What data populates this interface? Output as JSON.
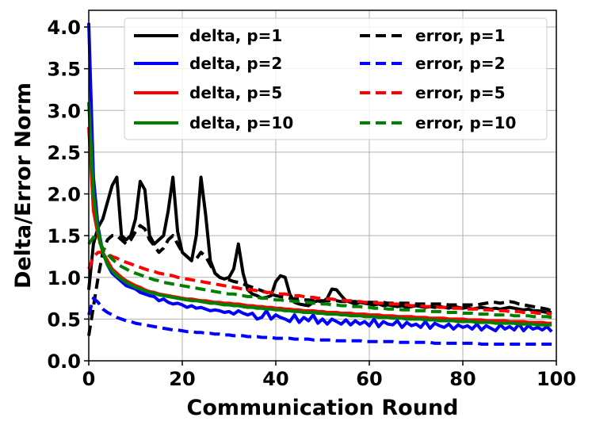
{
  "chart_data": {
    "type": "line",
    "title": "",
    "xlabel": "Communication Round",
    "ylabel": "Delta/Error Norm",
    "xlim": [
      0,
      100
    ],
    "ylim": [
      0,
      4.2
    ],
    "x_ticks": [
      "0",
      "20",
      "40",
      "60",
      "80",
      "100"
    ],
    "y_ticks": [
      "0.0",
      "0.5",
      "1.0",
      "1.5",
      "2.0",
      "2.5",
      "3.0",
      "3.5",
      "4.0"
    ],
    "grid": true,
    "legend_position": "top-right",
    "x": [
      0,
      1,
      2,
      3,
      4,
      5,
      6,
      7,
      8,
      9,
      10,
      11,
      12,
      13,
      14,
      15,
      16,
      17,
      18,
      19,
      20,
      21,
      22,
      23,
      24,
      25,
      26,
      27,
      28,
      29,
      30,
      31,
      32,
      33,
      34,
      35,
      36,
      37,
      38,
      39,
      40,
      41,
      42,
      43,
      44,
      45,
      46,
      47,
      48,
      49,
      50,
      51,
      52,
      53,
      54,
      55,
      56,
      57,
      58,
      59,
      60,
      61,
      62,
      63,
      64,
      65,
      66,
      67,
      68,
      69,
      70,
      71,
      72,
      73,
      74,
      75,
      76,
      77,
      78,
      79,
      80,
      81,
      82,
      83,
      84,
      85,
      86,
      87,
      88,
      89,
      90,
      91,
      92,
      93,
      94,
      95,
      96,
      97,
      98,
      99
    ],
    "series": [
      {
        "name": "delta, p=1",
        "color": "#000000",
        "dash": "solid",
        "values": [
          0.85,
          1.4,
          1.6,
          1.7,
          1.9,
          2.1,
          2.2,
          1.5,
          1.45,
          1.5,
          1.7,
          2.15,
          2.05,
          1.5,
          1.4,
          1.45,
          1.5,
          1.8,
          2.2,
          1.55,
          1.3,
          1.25,
          1.2,
          1.5,
          2.2,
          1.75,
          1.2,
          1.05,
          1.0,
          0.98,
          1.0,
          1.1,
          1.4,
          1.05,
          0.85,
          0.8,
          0.78,
          0.75,
          0.76,
          0.78,
          0.95,
          1.02,
          1.0,
          0.8,
          0.7,
          0.68,
          0.67,
          0.66,
          0.7,
          0.72,
          0.7,
          0.75,
          0.86,
          0.85,
          0.78,
          0.72,
          0.7,
          0.68,
          0.7,
          0.69,
          0.68,
          0.67,
          0.68,
          0.66,
          0.67,
          0.66,
          0.65,
          0.66,
          0.64,
          0.65,
          0.66,
          0.65,
          0.64,
          0.65,
          0.64,
          0.65,
          0.64,
          0.63,
          0.65,
          0.64,
          0.63,
          0.64,
          0.62,
          0.63,
          0.64,
          0.63,
          0.62,
          0.63,
          0.62,
          0.63,
          0.64,
          0.63,
          0.62,
          0.61,
          0.62,
          0.6,
          0.6,
          0.59,
          0.58,
          0.58
        ]
      },
      {
        "name": "error, p=1",
        "color": "#000000",
        "dash": "dashed",
        "values": [
          0.3,
          0.65,
          1.0,
          1.3,
          1.45,
          1.5,
          1.5,
          1.45,
          1.4,
          1.45,
          1.55,
          1.62,
          1.58,
          1.45,
          1.38,
          1.3,
          1.35,
          1.45,
          1.5,
          1.4,
          1.3,
          1.25,
          1.2,
          1.22,
          1.3,
          1.25,
          1.15,
          1.05,
          1.0,
          0.98,
          0.97,
          0.95,
          0.94,
          0.92,
          0.9,
          0.88,
          0.86,
          0.84,
          0.82,
          0.8,
          0.78,
          0.77,
          0.76,
          0.75,
          0.74,
          0.74,
          0.73,
          0.73,
          0.72,
          0.72,
          0.72,
          0.72,
          0.72,
          0.72,
          0.71,
          0.71,
          0.71,
          0.71,
          0.7,
          0.7,
          0.7,
          0.7,
          0.7,
          0.7,
          0.69,
          0.69,
          0.69,
          0.69,
          0.69,
          0.69,
          0.68,
          0.68,
          0.68,
          0.68,
          0.68,
          0.68,
          0.68,
          0.67,
          0.67,
          0.67,
          0.67,
          0.67,
          0.67,
          0.67,
          0.68,
          0.69,
          0.7,
          0.7,
          0.69,
          0.7,
          0.71,
          0.7,
          0.68,
          0.67,
          0.66,
          0.65,
          0.64,
          0.63,
          0.62,
          0.6
        ]
      },
      {
        "name": "delta, p=2",
        "color": "#0000ff",
        "dash": "solid",
        "values": [
          4.05,
          2.2,
          1.6,
          1.3,
          1.15,
          1.05,
          1.0,
          0.95,
          0.9,
          0.88,
          0.86,
          0.82,
          0.8,
          0.78,
          0.77,
          0.72,
          0.74,
          0.7,
          0.68,
          0.69,
          0.67,
          0.64,
          0.66,
          0.63,
          0.64,
          0.62,
          0.6,
          0.61,
          0.6,
          0.58,
          0.59,
          0.56,
          0.6,
          0.57,
          0.55,
          0.57,
          0.5,
          0.52,
          0.6,
          0.5,
          0.55,
          0.52,
          0.5,
          0.47,
          0.55,
          0.46,
          0.52,
          0.48,
          0.55,
          0.45,
          0.5,
          0.44,
          0.5,
          0.47,
          0.44,
          0.49,
          0.43,
          0.48,
          0.44,
          0.47,
          0.42,
          0.5,
          0.41,
          0.47,
          0.44,
          0.43,
          0.48,
          0.4,
          0.46,
          0.42,
          0.44,
          0.4,
          0.47,
          0.39,
          0.45,
          0.42,
          0.4,
          0.44,
          0.38,
          0.43,
          0.4,
          0.42,
          0.38,
          0.44,
          0.37,
          0.42,
          0.39,
          0.36,
          0.43,
          0.38,
          0.41,
          0.37,
          0.44,
          0.36,
          0.42,
          0.38,
          0.4,
          0.37,
          0.41,
          0.35
        ]
      },
      {
        "name": "error, p=2",
        "color": "#0000ff",
        "dash": "dashed",
        "values": [
          0.55,
          0.75,
          0.7,
          0.62,
          0.58,
          0.55,
          0.52,
          0.5,
          0.48,
          0.47,
          0.45,
          0.44,
          0.43,
          0.42,
          0.41,
          0.4,
          0.39,
          0.38,
          0.37,
          0.37,
          0.36,
          0.35,
          0.35,
          0.34,
          0.34,
          0.33,
          0.33,
          0.32,
          0.32,
          0.31,
          0.31,
          0.3,
          0.3,
          0.3,
          0.29,
          0.29,
          0.29,
          0.28,
          0.28,
          0.28,
          0.27,
          0.27,
          0.27,
          0.27,
          0.26,
          0.26,
          0.26,
          0.26,
          0.25,
          0.25,
          0.25,
          0.25,
          0.25,
          0.24,
          0.24,
          0.24,
          0.24,
          0.24,
          0.24,
          0.23,
          0.23,
          0.23,
          0.23,
          0.23,
          0.23,
          0.23,
          0.22,
          0.22,
          0.22,
          0.22,
          0.22,
          0.22,
          0.22,
          0.22,
          0.21,
          0.21,
          0.21,
          0.21,
          0.21,
          0.21,
          0.21,
          0.21,
          0.21,
          0.21,
          0.2,
          0.2,
          0.2,
          0.2,
          0.2,
          0.2,
          0.2,
          0.2,
          0.2,
          0.2,
          0.2,
          0.2,
          0.2,
          0.2,
          0.2,
          0.2
        ]
      },
      {
        "name": "delta, p=5",
        "color": "#ff0000",
        "dash": "solid",
        "values": [
          2.8,
          1.8,
          1.5,
          1.3,
          1.2,
          1.1,
          1.05,
          1.0,
          0.96,
          0.93,
          0.9,
          0.88,
          0.85,
          0.83,
          0.82,
          0.8,
          0.79,
          0.78,
          0.77,
          0.76,
          0.75,
          0.74,
          0.74,
          0.73,
          0.72,
          0.72,
          0.71,
          0.7,
          0.7,
          0.69,
          0.69,
          0.68,
          0.68,
          0.67,
          0.66,
          0.66,
          0.65,
          0.65,
          0.64,
          0.64,
          0.63,
          0.63,
          0.62,
          0.62,
          0.61,
          0.61,
          0.6,
          0.6,
          0.6,
          0.59,
          0.59,
          0.58,
          0.58,
          0.58,
          0.57,
          0.57,
          0.57,
          0.56,
          0.56,
          0.56,
          0.55,
          0.55,
          0.55,
          0.54,
          0.54,
          0.54,
          0.53,
          0.53,
          0.53,
          0.53,
          0.52,
          0.52,
          0.52,
          0.51,
          0.51,
          0.51,
          0.51,
          0.5,
          0.5,
          0.5,
          0.5,
          0.49,
          0.49,
          0.49,
          0.49,
          0.48,
          0.48,
          0.48,
          0.48,
          0.48,
          0.47,
          0.47,
          0.47,
          0.47,
          0.46,
          0.46,
          0.46,
          0.46,
          0.45,
          0.45
        ]
      },
      {
        "name": "error, p=5",
        "color": "#ff0000",
        "dash": "dashed",
        "values": [
          1.1,
          1.25,
          1.3,
          1.3,
          1.28,
          1.25,
          1.23,
          1.2,
          1.18,
          1.16,
          1.14,
          1.12,
          1.1,
          1.08,
          1.07,
          1.05,
          1.04,
          1.03,
          1.02,
          1.0,
          0.99,
          0.98,
          0.97,
          0.96,
          0.95,
          0.94,
          0.93,
          0.92,
          0.91,
          0.9,
          0.89,
          0.88,
          0.87,
          0.86,
          0.85,
          0.85,
          0.84,
          0.83,
          0.82,
          0.82,
          0.81,
          0.8,
          0.8,
          0.79,
          0.78,
          0.78,
          0.77,
          0.76,
          0.76,
          0.75,
          0.75,
          0.74,
          0.74,
          0.73,
          0.73,
          0.72,
          0.72,
          0.71,
          0.71,
          0.7,
          0.7,
          0.7,
          0.69,
          0.69,
          0.68,
          0.68,
          0.68,
          0.67,
          0.67,
          0.66,
          0.66,
          0.66,
          0.65,
          0.65,
          0.65,
          0.64,
          0.64,
          0.64,
          0.63,
          0.63,
          0.63,
          0.62,
          0.62,
          0.62,
          0.61,
          0.61,
          0.61,
          0.6,
          0.6,
          0.6,
          0.59,
          0.59,
          0.59,
          0.58,
          0.58,
          0.58,
          0.57,
          0.57,
          0.57,
          0.56
        ]
      },
      {
        "name": "delta, p=10",
        "color": "#008000",
        "dash": "solid",
        "values": [
          3.1,
          2.0,
          1.55,
          1.3,
          1.15,
          1.08,
          1.02,
          0.98,
          0.94,
          0.91,
          0.88,
          0.86,
          0.84,
          0.82,
          0.81,
          0.79,
          0.78,
          0.77,
          0.76,
          0.75,
          0.74,
          0.73,
          0.72,
          0.72,
          0.71,
          0.7,
          0.69,
          0.69,
          0.68,
          0.67,
          0.67,
          0.66,
          0.66,
          0.65,
          0.64,
          0.64,
          0.63,
          0.63,
          0.62,
          0.62,
          0.61,
          0.61,
          0.6,
          0.6,
          0.59,
          0.59,
          0.58,
          0.58,
          0.58,
          0.57,
          0.57,
          0.56,
          0.56,
          0.56,
          0.55,
          0.55,
          0.54,
          0.54,
          0.54,
          0.53,
          0.53,
          0.53,
          0.52,
          0.52,
          0.52,
          0.51,
          0.51,
          0.51,
          0.5,
          0.5,
          0.5,
          0.5,
          0.49,
          0.49,
          0.49,
          0.48,
          0.48,
          0.48,
          0.48,
          0.47,
          0.47,
          0.47,
          0.47,
          0.46,
          0.46,
          0.46,
          0.46,
          0.45,
          0.45,
          0.45,
          0.45,
          0.45,
          0.44,
          0.44,
          0.44,
          0.44,
          0.43,
          0.43,
          0.43,
          0.43
        ]
      },
      {
        "name": "error, p=10",
        "color": "#008000",
        "dash": "dashed",
        "values": [
          1.4,
          1.48,
          1.45,
          1.35,
          1.28,
          1.22,
          1.17,
          1.13,
          1.1,
          1.07,
          1.05,
          1.03,
          1.01,
          0.99,
          0.97,
          0.96,
          0.94,
          0.93,
          0.92,
          0.91,
          0.9,
          0.89,
          0.88,
          0.87,
          0.86,
          0.85,
          0.84,
          0.83,
          0.82,
          0.81,
          0.8,
          0.8,
          0.79,
          0.78,
          0.77,
          0.77,
          0.76,
          0.75,
          0.75,
          0.74,
          0.73,
          0.73,
          0.72,
          0.72,
          0.71,
          0.71,
          0.7,
          0.7,
          0.69,
          0.69,
          0.68,
          0.68,
          0.67,
          0.67,
          0.66,
          0.66,
          0.65,
          0.65,
          0.65,
          0.64,
          0.64,
          0.63,
          0.63,
          0.63,
          0.62,
          0.62,
          0.62,
          0.61,
          0.61,
          0.61,
          0.6,
          0.6,
          0.6,
          0.59,
          0.59,
          0.59,
          0.58,
          0.58,
          0.58,
          0.58,
          0.57,
          0.57,
          0.57,
          0.56,
          0.56,
          0.56,
          0.56,
          0.55,
          0.55,
          0.55,
          0.55,
          0.54,
          0.54,
          0.54,
          0.54,
          0.53,
          0.53,
          0.53,
          0.53,
          0.52
        ]
      }
    ]
  }
}
